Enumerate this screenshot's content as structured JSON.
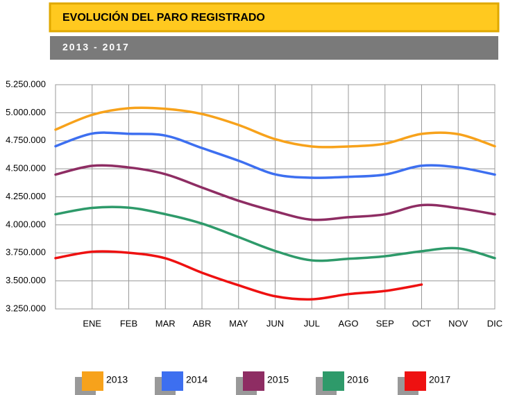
{
  "chart_data": {
    "type": "line",
    "title": "EVOLUCIÓN DEL PARO REGISTRADO",
    "subtitle": "2013 - 2017",
    "categories": [
      null,
      "ENE",
      "FEB",
      "MAR",
      "ABR",
      "MAY",
      "JUN",
      "JUL",
      "AGO",
      "SEP",
      "OCT",
      "NOV",
      "DIC"
    ],
    "series": [
      {
        "name": "2013",
        "color": "#f7a21b",
        "values": [
          4849000,
          4981000,
          5040000,
          5035000,
          4989000,
          4891000,
          4764000,
          4699000,
          4699000,
          4724000,
          4811000,
          4809000,
          4701000
        ]
      },
      {
        "name": "2014",
        "color": "#3d6ff0",
        "values": [
          4701000,
          4814000,
          4812000,
          4796000,
          4685000,
          4572000,
          4450000,
          4420000,
          4428000,
          4448000,
          4527000,
          4512000,
          4448000
        ]
      },
      {
        "name": "2015",
        "color": "#8e2d63",
        "values": [
          4448000,
          4526000,
          4512000,
          4452000,
          4333000,
          4215000,
          4120000,
          4046000,
          4068000,
          4094000,
          4176000,
          4149000,
          4094000
        ]
      },
      {
        "name": "2016",
        "color": "#2e9a6a",
        "values": [
          4094000,
          4151000,
          4153000,
          4095000,
          4011000,
          3891000,
          3767000,
          3683000,
          3697000,
          3720000,
          3765000,
          3790000,
          3703000
        ]
      },
      {
        "name": "2017",
        "color": "#ee1111",
        "values": [
          3703000,
          3760000,
          3751000,
          3702000,
          3573000,
          3461000,
          3363000,
          3336000,
          3382000,
          3410000,
          3467000,
          null,
          null
        ]
      }
    ],
    "ylim": [
      3250000,
      5250000
    ],
    "yticks": [
      {
        "value": 3250000,
        "label": "3.250.000"
      },
      {
        "value": 3500000,
        "label": "3.500.000"
      },
      {
        "value": 3750000,
        "label": "3.750.000"
      },
      {
        "value": 4000000,
        "label": "4.000.000"
      },
      {
        "value": 4250000,
        "label": "4.250.000"
      },
      {
        "value": 4500000,
        "label": "4.500.000"
      },
      {
        "value": 4750000,
        "label": "4.750.000"
      },
      {
        "value": 5000000,
        "label": "5.000.000"
      },
      {
        "value": 5250000,
        "label": "5.250.000"
      }
    ],
    "grid": true
  }
}
